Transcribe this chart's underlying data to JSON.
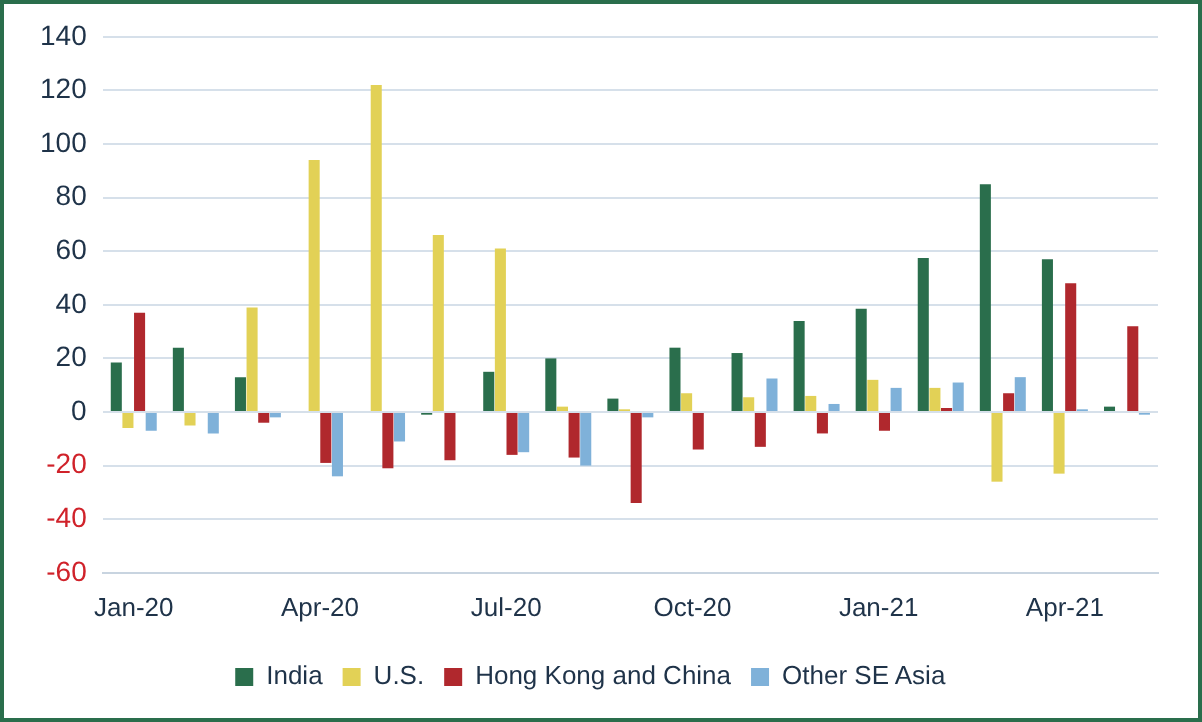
{
  "chart_data": {
    "type": "bar",
    "categories": [
      "Jan-20",
      null,
      null,
      "Apr-20",
      null,
      null,
      "Jul-20",
      null,
      null,
      "Oct-20",
      null,
      null,
      "Jan-21",
      null,
      null,
      "Apr-21",
      null
    ],
    "series": [
      {
        "name": "India",
        "color": "#2a6e4c",
        "values": [
          18.5,
          24,
          13,
          null,
          null,
          -1,
          15,
          20,
          5,
          24,
          22,
          34,
          38.5,
          57.5,
          85,
          57,
          2
        ]
      },
      {
        "name": "U.S.",
        "color": "#e2d156",
        "values": [
          -6,
          -5,
          39,
          94,
          122,
          66,
          61,
          2,
          1,
          7,
          5.5,
          6,
          12,
          9,
          -26,
          -23,
          null
        ]
      },
      {
        "name": "Hong Kong and China",
        "color": "#b0282d",
        "values": [
          37,
          null,
          -4,
          -19,
          -21,
          -18,
          -16,
          -17,
          -34,
          -14,
          -13,
          -8,
          -7,
          1.5,
          7,
          48,
          32
        ]
      },
      {
        "name": "Other SE Asia",
        "color": "#7fb1d9",
        "values": [
          -7,
          -8,
          -2,
          -24,
          -11,
          null,
          -15,
          -20,
          -2,
          null,
          12.5,
          3,
          9,
          11,
          13,
          1,
          -1
        ]
      }
    ],
    "ylim": [
      -60,
      140
    ],
    "yticks": [
      -60,
      -40,
      -20,
      0,
      20,
      40,
      60,
      80,
      100,
      120,
      140
    ],
    "grid": "y",
    "legend": "bottom"
  }
}
